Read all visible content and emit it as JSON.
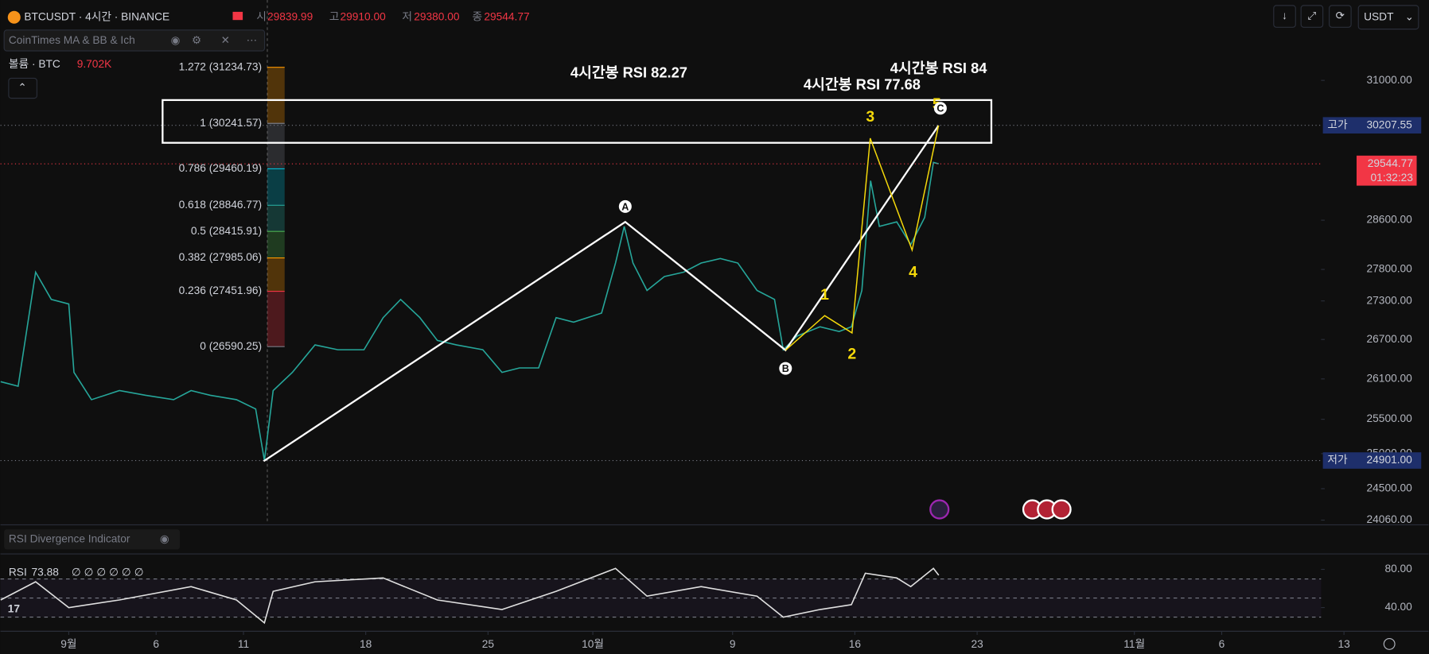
{
  "header": {
    "symbol": "BTCUSDT · 4시간 · BINANCE",
    "ohlc": [
      {
        "label": "시",
        "value": "29839.99"
      },
      {
        "label": "고",
        "value": "29910.00"
      },
      {
        "label": "저",
        "value": "29380.00"
      },
      {
        "label": "종",
        "value": "29544.77"
      }
    ],
    "currency": "USDT"
  },
  "indicators": {
    "main": "CoinTimes MA & BB & Ich",
    "volume_label": "볼륨 · BTC",
    "volume_value": "9.702K",
    "rsi_indicator": "RSI Divergence Indicator",
    "rsi_label": "RSI",
    "rsi_value": "73.88",
    "rsi_extra": "∅ ∅ ∅ ∅ ∅ ∅"
  },
  "chart_data": [
    {
      "type": "line",
      "log_scale": true,
      "x": [
        -3.9,
        -2.9,
        -1.9,
        -1.0,
        0,
        0.3,
        1.3,
        2.9,
        4.4,
        6.0,
        7.0,
        8.1,
        9.6,
        10.7,
        11.2,
        11.7,
        12.8,
        14.1,
        15.4,
        16.9,
        18.0,
        19.0,
        20.1,
        21.1,
        22.2,
        23.7,
        24.8,
        25.8,
        26.9,
        27.9,
        28.9,
        30.5,
        31.3,
        31.8,
        32.3,
        33.1,
        34.1,
        35.2,
        36.2,
        37.3,
        38.3,
        39.4,
        40.4,
        40.9,
        41.7,
        43.0,
        44.1,
        44.8,
        45.4,
        45.9,
        46.4,
        47.4,
        48.2,
        49.0,
        49.5,
        49.8
      ],
      "series": [
        {
          "name": "BTCUSDT",
          "color": "#26a69a",
          "values": [
            26059,
            25990,
            27757,
            27324,
            27252,
            26198,
            25789,
            25925,
            25854,
            25789,
            25925,
            25854,
            25789,
            25652,
            24901,
            25925,
            26198,
            26617,
            26543,
            26543,
            27038,
            27324,
            27038,
            26685,
            26617,
            26543,
            26198,
            26266,
            26266,
            27038,
            26967,
            27110,
            27903,
            28498,
            27903,
            27466,
            27686,
            27757,
            27903,
            27976,
            27903,
            27466,
            27324,
            26543,
            26753,
            26896,
            26824,
            26896,
            27466,
            29258,
            28498,
            28573,
            28201,
            28647,
            29568,
            29544.77
          ]
        }
      ],
      "xlim": [
        -3.91,
        77.84
      ],
      "xticks": [
        {
          "value": 0,
          "label": "9월"
        },
        {
          "value": 5,
          "label": "6"
        },
        {
          "value": 10,
          "label": "11"
        },
        {
          "value": 17,
          "label": "18"
        },
        {
          "value": 24,
          "label": "25"
        },
        {
          "value": 30,
          "label": "10월"
        },
        {
          "value": 38,
          "label": "9"
        },
        {
          "value": 45,
          "label": "16"
        },
        {
          "value": 52,
          "label": "23"
        },
        {
          "value": 61,
          "label": "11월"
        },
        {
          "value": 66,
          "label": "6"
        },
        {
          "value": 73,
          "label": "13"
        }
      ],
      "ylim": [
        24020,
        32470
      ],
      "yticks": [
        {
          "value": 31000,
          "label": "31000.00"
        },
        {
          "value": 28600,
          "label": "28600.00"
        },
        {
          "value": 27800,
          "label": "27800.00"
        },
        {
          "value": 27300,
          "label": "27300.00"
        },
        {
          "value": 26700,
          "label": "26700.00"
        },
        {
          "value": 26100,
          "label": "26100.00"
        },
        {
          "value": 25500,
          "label": "25500.00"
        },
        {
          "value": 25000,
          "label": "25000.00"
        },
        {
          "value": 24500,
          "label": "24500.00"
        },
        {
          "value": 24060,
          "label": "24060.00"
        }
      ],
      "fib_levels": [
        {
          "value": 31234.73,
          "label": "1.272 (31234.73)",
          "color": "#ff9800"
        },
        {
          "value": 30241.57,
          "label": "1 (30241.57)",
          "color": "#787b86"
        },
        {
          "value": 29460.19,
          "label": "0.786 (29460.19)",
          "color": "#00bcd4"
        },
        {
          "value": 28846.77,
          "label": "0.618 (28846.77)",
          "color": "#26a69a"
        },
        {
          "value": 28415.91,
          "label": "0.5 (28415.91)",
          "color": "#4caf50"
        },
        {
          "value": 27985.06,
          "label": "0.382 (27985.06)",
          "color": "#ff9800"
        },
        {
          "value": 27451.96,
          "label": "0.236 (27451.96)",
          "color": "#f23645"
        },
        {
          "value": 26590.25,
          "label": "0 (26590.25)",
          "color": "#787b86"
        }
      ],
      "price_lines": [
        {
          "name": "고가",
          "value": 30207.55,
          "color": "#1e2f6b"
        },
        {
          "name": "저가",
          "value": 24901,
          "label": "24901.00",
          "color": "#1e2f6b"
        }
      ],
      "last": {
        "value": 29544.77,
        "countdown": "01:32:23",
        "color": "#f23645"
      },
      "annotations": [
        "4시간봉 RSI 82.27",
        "4시간봉 RSI 77.68",
        "4시간봉 RSI 84"
      ],
      "waves": [
        "A",
        "B",
        "C",
        "1",
        "2",
        "3",
        "4",
        "5"
      ]
    },
    {
      "type": "line",
      "x": [
        -3.9,
        -1.9,
        0,
        2.9,
        7.0,
        9.6,
        11.2,
        11.7,
        14.1,
        18.0,
        21.1,
        24.8,
        27.9,
        31.3,
        33.1,
        36.2,
        39.4,
        40.9,
        43.0,
        44.8,
        45.6,
        47.4,
        48.2,
        49.5,
        49.8
      ],
      "series": [
        {
          "name": "RSI",
          "color": "#e0e0e0",
          "values": [
            48,
            67,
            40,
            48,
            62,
            48,
            24,
            57,
            67,
            71,
            48,
            38,
            57,
            81,
            52,
            62,
            52,
            30,
            38,
            43,
            76,
            71,
            62,
            81,
            73.88
          ]
        }
      ],
      "xlim": [
        -3.91,
        77.84
      ],
      "ylim": [
        19,
        93.3
      ],
      "yticks": [
        {
          "value": 80,
          "label": "80.00"
        },
        {
          "value": 40,
          "label": "40.00"
        }
      ],
      "bands": [
        70,
        50,
        30
      ]
    }
  ]
}
